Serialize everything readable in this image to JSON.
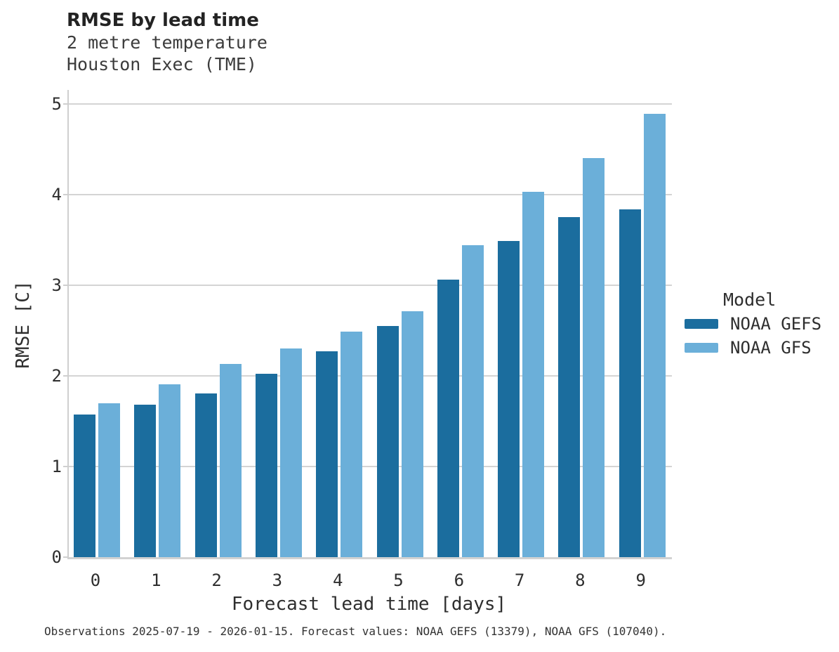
{
  "header": {
    "title": "RMSE by lead time",
    "subtitle_line1": "2 metre temperature",
    "subtitle_line2": "Houston Exec (TME)"
  },
  "chart_data": {
    "type": "bar",
    "title": "RMSE by lead time",
    "subtitle": [
      "2 metre temperature",
      "Houston Exec (TME)"
    ],
    "categories": [
      "0",
      "1",
      "2",
      "3",
      "4",
      "5",
      "6",
      "7",
      "8",
      "9"
    ],
    "series": [
      {
        "name": "NOAA GEFS",
        "color": "#1b6d9e",
        "values": [
          1.57,
          1.68,
          1.81,
          2.02,
          2.27,
          2.55,
          3.06,
          3.49,
          3.75,
          3.84
        ]
      },
      {
        "name": "NOAA GFS",
        "color": "#6bafd9",
        "values": [
          1.7,
          1.91,
          2.13,
          2.3,
          2.49,
          2.71,
          3.44,
          4.03,
          4.4,
          4.89
        ]
      }
    ],
    "xlabel": "Forecast lead time [days]",
    "ylabel": "RMSE [C]",
    "ylim": [
      0,
      5
    ],
    "yticks": [
      "0",
      "1",
      "2",
      "3",
      "4",
      "5"
    ],
    "grid": "horizontal gridlines, drawn behind bars",
    "legend_title": "Model",
    "legend_position": "right"
  },
  "caption": "Observations 2025-07-19 - 2026-01-15. Forecast values: NOAA GEFS (13379), NOAA GFS (107040).",
  "colors": {
    "series_dark": "#1b6d9e",
    "series_light": "#6bafd9",
    "gridline": "#d4d4d4",
    "spine": "#cfcfcf",
    "text": "#2e2e2e"
  }
}
